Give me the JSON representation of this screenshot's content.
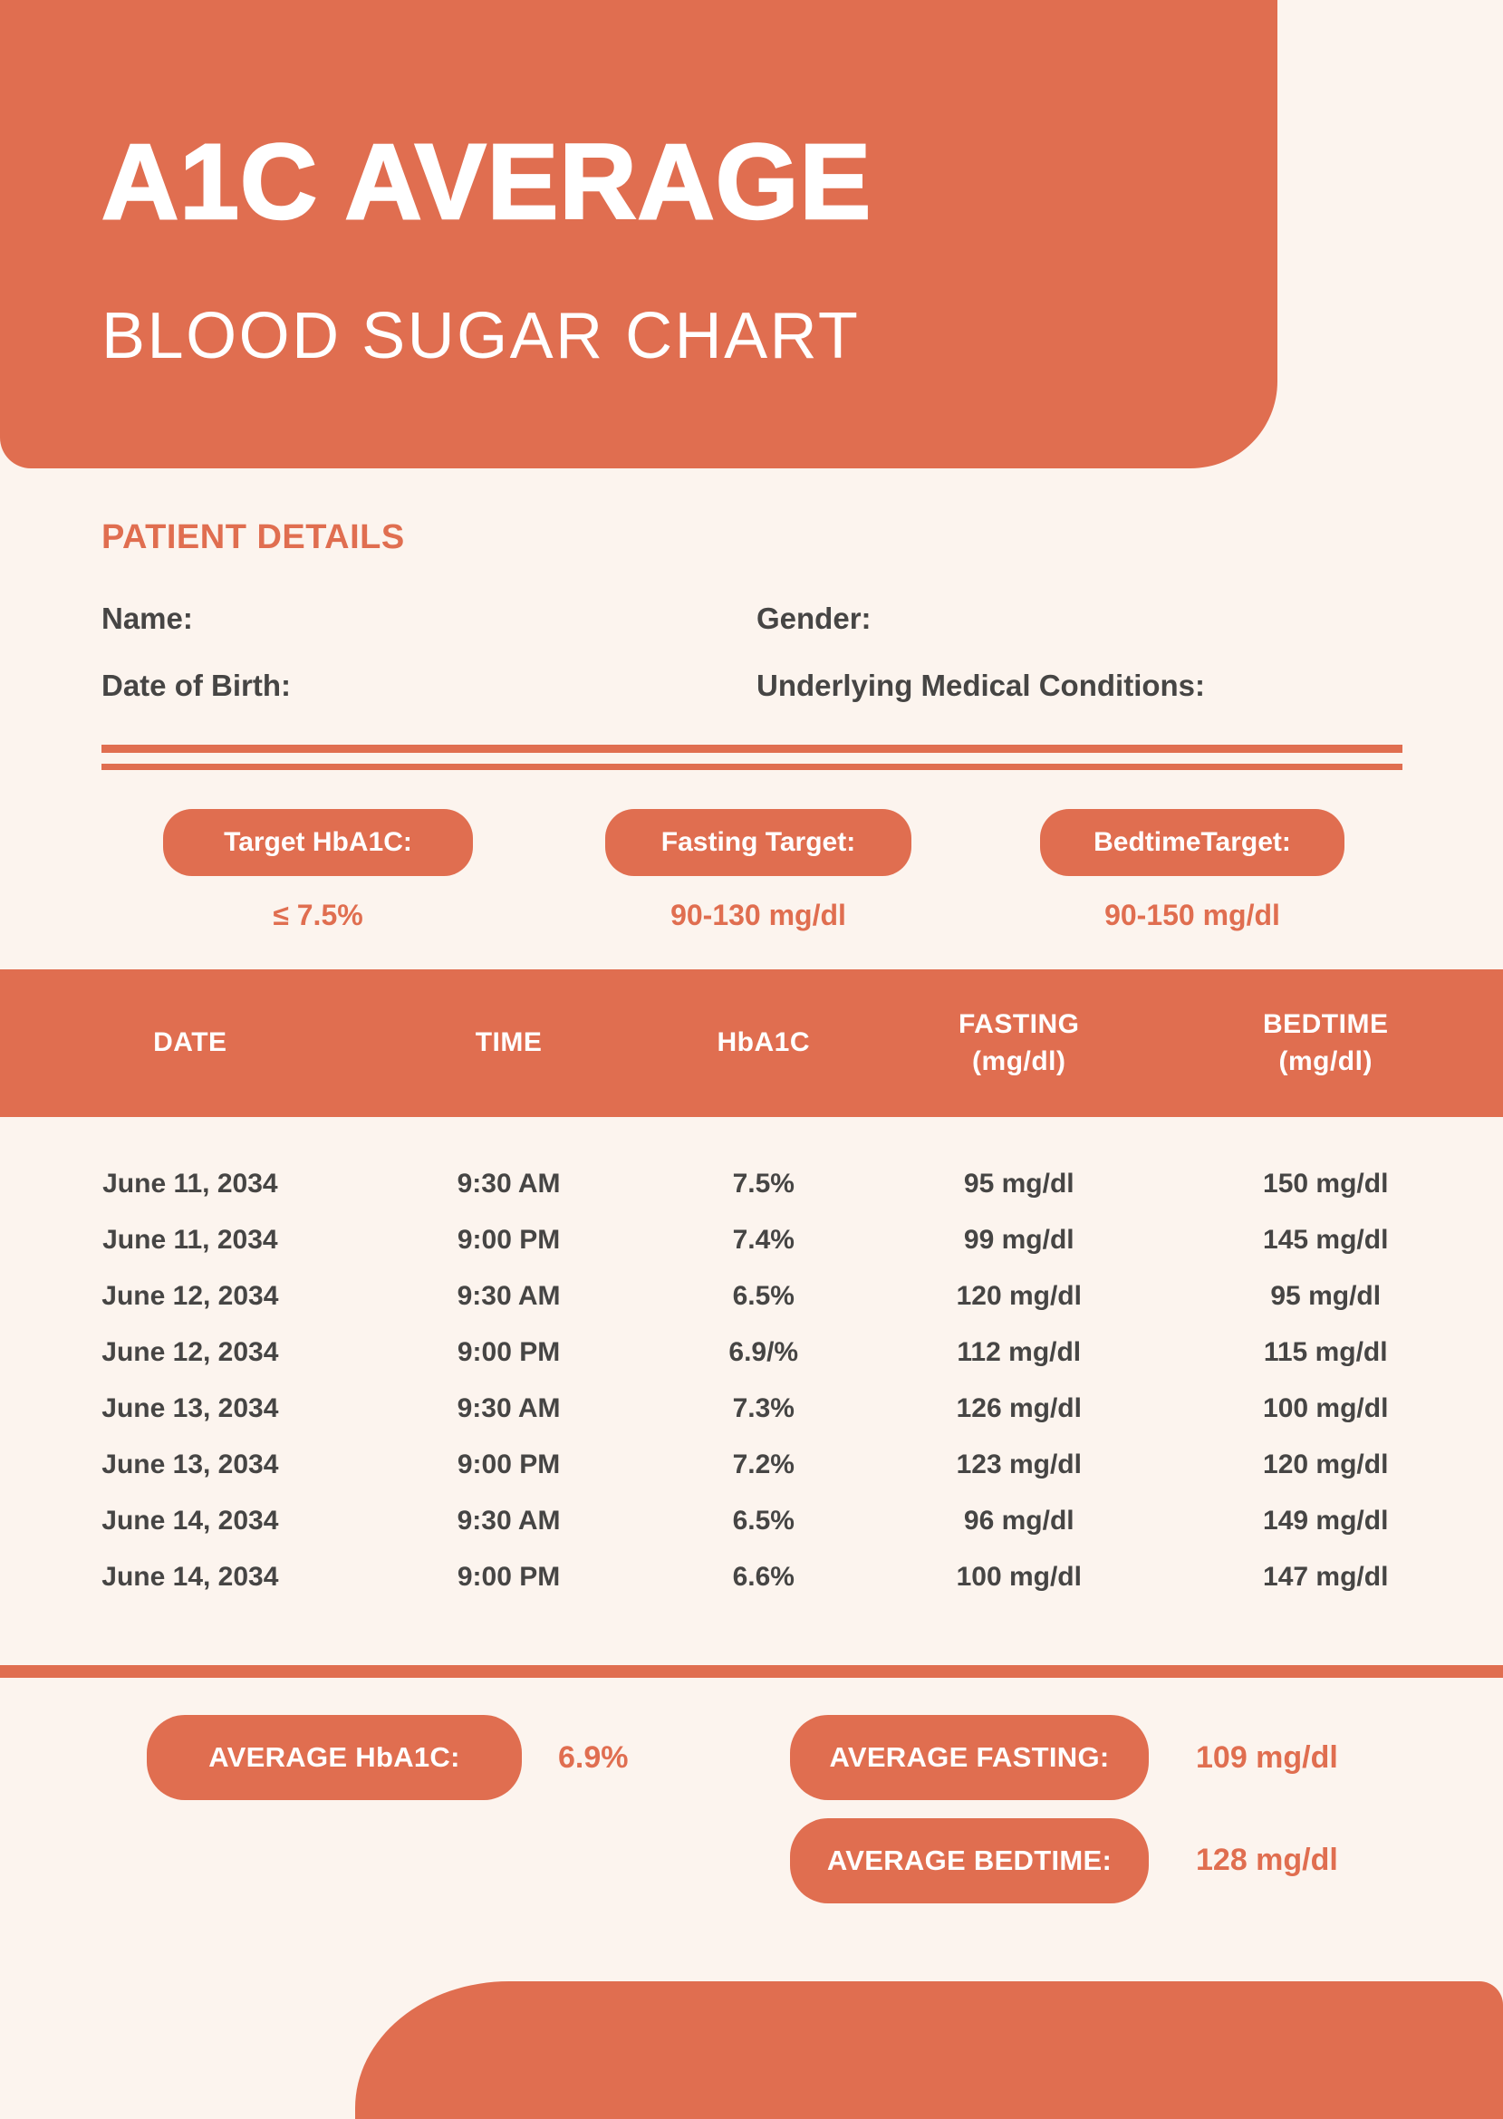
{
  "colors": {
    "accent": "#E06E50",
    "background": "#FCF4EE",
    "text": "#464544",
    "pill_text": "#FFFFFF"
  },
  "page": {
    "title": "A1C AVERAGE",
    "subtitle": "BLOOD SUGAR CHART"
  },
  "patient": {
    "heading": "PATIENT DETAILS",
    "fields": [
      {
        "label": "Name:"
      },
      {
        "label": "Gender:"
      },
      {
        "label": "Date of Birth:"
      },
      {
        "label": "Underlying Medical Conditions:"
      }
    ]
  },
  "targets": [
    {
      "label": "Target HbA1C:",
      "value": "≤ 7.5%"
    },
    {
      "label": "Fasting Target:",
      "value": "90-130 mg/dl"
    },
    {
      "label": "BedtimeTarget:",
      "value": "90-150 mg/dl"
    }
  ],
  "table": {
    "columns": [
      {
        "line1": "DATE",
        "line2": ""
      },
      {
        "line1": "TIME",
        "line2": ""
      },
      {
        "line1": "HbA1C",
        "line2": ""
      },
      {
        "line1": "FASTING",
        "line2": "(mg/dl)"
      },
      {
        "line1": "BEDTIME",
        "line2": "(mg/dl)"
      }
    ],
    "rows": [
      [
        "June 11, 2034",
        "9:30 AM",
        "7.5%",
        "95 mg/dl",
        "150 mg/dl"
      ],
      [
        "June 11, 2034",
        "9:00 PM",
        "7.4%",
        "99 mg/dl",
        "145 mg/dl"
      ],
      [
        "June 12, 2034",
        "9:30 AM",
        "6.5%",
        "120 mg/dl",
        "95 mg/dl"
      ],
      [
        "June 12, 2034",
        "9:00 PM",
        "6.9/%",
        "112 mg/dl",
        "115 mg/dl"
      ],
      [
        "June 13, 2034",
        "9:30 AM",
        "7.3%",
        "126 mg/dl",
        "100 mg/dl"
      ],
      [
        "June 13, 2034",
        "9:00 PM",
        "7.2%",
        "123 mg/dl",
        "120 mg/dl"
      ],
      [
        "June 14, 2034",
        "9:30 AM",
        "6.5%",
        "96 mg/dl",
        "149 mg/dl"
      ],
      [
        "June 14, 2034",
        "9:00 PM",
        "6.6%",
        "100 mg/dl",
        "147 mg/dl"
      ]
    ]
  },
  "averages": [
    {
      "label": "AVERAGE HbA1C:",
      "value": "6.9%"
    },
    {
      "label": "AVERAGE FASTING:",
      "value": "109 mg/dl"
    },
    {
      "label": "AVERAGE BEDTIME:",
      "value": "128 mg/dl"
    }
  ]
}
